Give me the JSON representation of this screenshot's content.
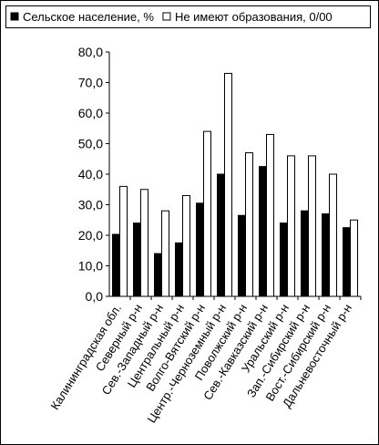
{
  "chart_data": {
    "type": "bar",
    "categories": [
      "Калининградская обл.",
      "Северный р-н",
      "Сев.-Западный р-н",
      "Центральный р-н",
      "Волго-Вятский р-н",
      "Центр.-Черноземный р-н",
      "Поволжский р-н",
      "Сев.-Кавказский р-н",
      "Уральский р-н",
      "Зап.-Сибирский р-н",
      "Вост.-Сибирский р-н",
      "Дальневосточный р-н"
    ],
    "series": [
      {
        "name": "Сельское население, %",
        "color": "#000000",
        "values": [
          20.3,
          24,
          14,
          17.5,
          30.5,
          40,
          26.5,
          42.5,
          24,
          28,
          27,
          22.5
        ]
      },
      {
        "name": "Не имеют образования, 0/00",
        "color": "#ffffff",
        "values": [
          36,
          35,
          28,
          33,
          54,
          73,
          47,
          53,
          46,
          46,
          40,
          25
        ]
      }
    ],
    "ylim": [
      0,
      80
    ],
    "yticks": [
      {
        "value": 0,
        "label": "0,0"
      },
      {
        "value": 10,
        "label": "10,0"
      },
      {
        "value": 20,
        "label": "20,0"
      },
      {
        "value": 30,
        "label": "30,0"
      },
      {
        "value": 40,
        "label": "40,0"
      },
      {
        "value": 50,
        "label": "50,0"
      },
      {
        "value": 60,
        "label": "60,0"
      },
      {
        "value": 70,
        "label": "70,0"
      },
      {
        "value": 80,
        "label": "80,0"
      }
    ],
    "grid": false,
    "legend": "top"
  }
}
